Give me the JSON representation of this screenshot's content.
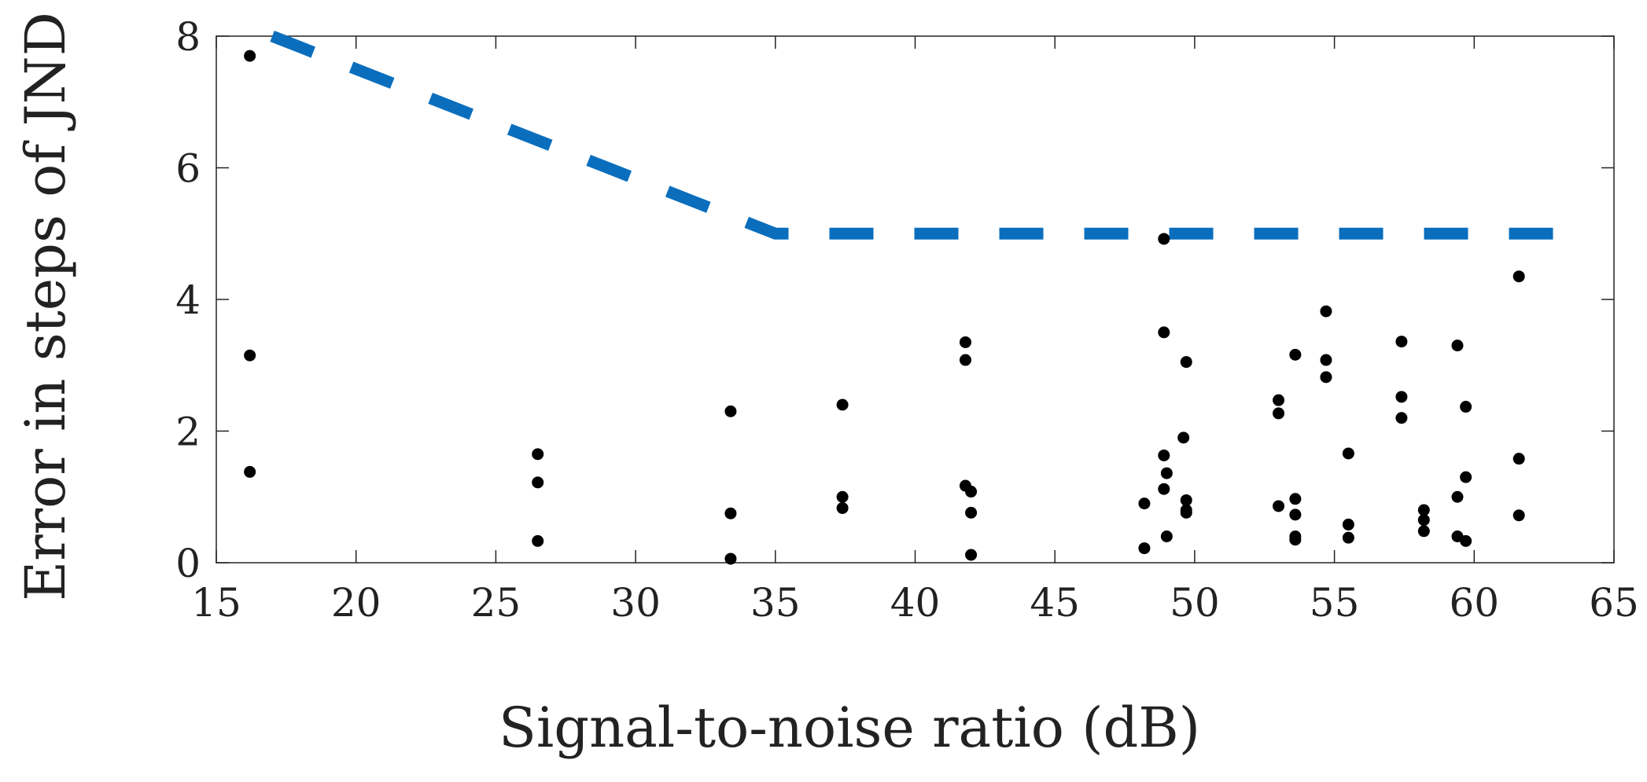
{
  "chart_data": {
    "type": "scatter",
    "title": "",
    "xlabel": "Signal-to-noise ratio (dB)",
    "ylabel": "Error in steps of JND",
    "xlim": [
      15,
      65
    ],
    "ylim": [
      0,
      8
    ],
    "xticks": [
      15,
      20,
      25,
      30,
      35,
      40,
      45,
      50,
      55,
      60,
      65
    ],
    "yticks": [
      0,
      2,
      4,
      6,
      8
    ],
    "grid": false,
    "colors": {
      "threshold": "#0a6ebd",
      "points": "#000000",
      "axes": "#222222"
    },
    "series": [
      {
        "name": "Threshold",
        "style": "dashed-line",
        "x": [
          17,
          35,
          64
        ],
        "y": [
          8,
          5,
          5
        ]
      },
      {
        "name": "Measurements",
        "style": "markers",
        "points": [
          [
            16.2,
            7.7
          ],
          [
            16.2,
            3.15
          ],
          [
            16.2,
            1.38
          ],
          [
            26.5,
            1.65
          ],
          [
            26.5,
            1.22
          ],
          [
            26.5,
            0.33
          ],
          [
            33.4,
            2.3
          ],
          [
            33.4,
            0.75
          ],
          [
            33.4,
            0.06
          ],
          [
            37.4,
            2.4
          ],
          [
            37.4,
            1.0
          ],
          [
            37.4,
            0.83
          ],
          [
            41.8,
            3.35
          ],
          [
            41.8,
            3.08
          ],
          [
            41.8,
            1.17
          ],
          [
            42.0,
            1.08
          ],
          [
            42.0,
            0.76
          ],
          [
            42.0,
            0.12
          ],
          [
            48.2,
            0.9
          ],
          [
            48.2,
            0.22
          ],
          [
            48.9,
            4.92
          ],
          [
            48.9,
            3.5
          ],
          [
            48.9,
            1.63
          ],
          [
            48.9,
            1.12
          ],
          [
            49.0,
            1.36
          ],
          [
            49.0,
            0.4
          ],
          [
            49.6,
            1.9
          ],
          [
            49.7,
            3.05
          ],
          [
            49.7,
            0.95
          ],
          [
            49.7,
            0.8
          ],
          [
            49.7,
            0.76
          ],
          [
            53.0,
            2.47
          ],
          [
            53.0,
            2.27
          ],
          [
            53.0,
            0.86
          ],
          [
            53.6,
            3.16
          ],
          [
            53.6,
            0.97
          ],
          [
            53.6,
            0.73
          ],
          [
            53.6,
            0.4
          ],
          [
            53.6,
            0.35
          ],
          [
            54.7,
            3.82
          ],
          [
            54.7,
            3.08
          ],
          [
            54.7,
            2.82
          ],
          [
            55.5,
            1.66
          ],
          [
            55.5,
            0.58
          ],
          [
            55.5,
            0.38
          ],
          [
            57.4,
            3.36
          ],
          [
            57.4,
            2.52
          ],
          [
            57.4,
            2.2
          ],
          [
            58.2,
            0.8
          ],
          [
            58.2,
            0.65
          ],
          [
            58.2,
            0.48
          ],
          [
            59.4,
            3.3
          ],
          [
            59.4,
            1.0
          ],
          [
            59.4,
            0.4
          ],
          [
            59.7,
            2.37
          ],
          [
            59.7,
            1.3
          ],
          [
            59.7,
            0.33
          ],
          [
            61.6,
            4.35
          ],
          [
            61.6,
            1.58
          ],
          [
            61.6,
            0.72
          ]
        ]
      }
    ]
  }
}
